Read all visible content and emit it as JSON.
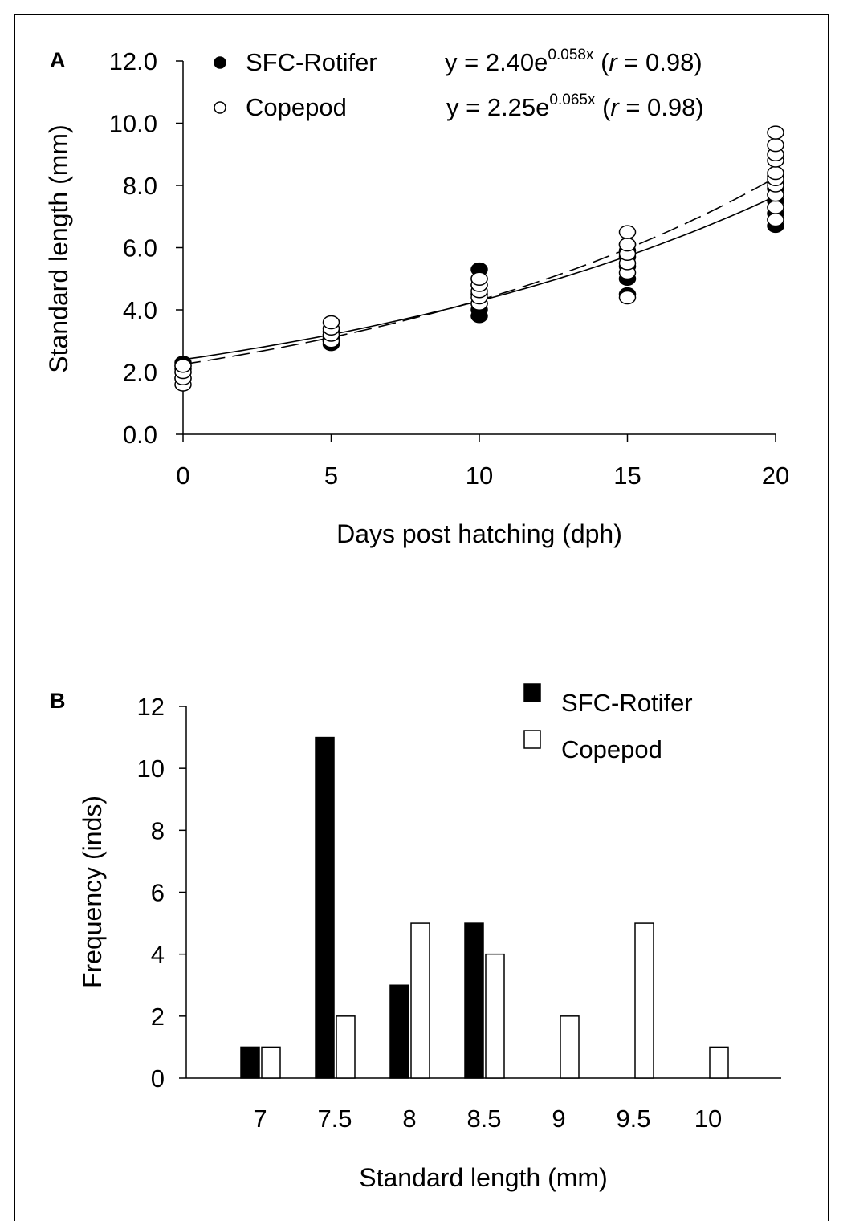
{
  "chart_data": [
    {
      "panel": "A",
      "type": "scatter",
      "xlabel": "Days post hatching (dph)",
      "ylabel": "Standard length (mm)",
      "xlim": [
        0,
        20
      ],
      "ylim": [
        0,
        12
      ],
      "xticks": [
        "0",
        "5",
        "10",
        "15",
        "20"
      ],
      "yticks": [
        "0.0",
        "2.0",
        "4.0",
        "6.0",
        "8.0",
        "10.0",
        "12.0"
      ],
      "legend_placement": "top-left",
      "grid": false,
      "series": [
        {
          "name": "SFC-Rotifer",
          "marker": "filled-circle",
          "line": "solid",
          "equation": {
            "prefix": "y = 2.40e",
            "exponent": "0.058x",
            "r_open": " (",
            "r_var": "r",
            "r_value": " = 0.98)"
          },
          "fit": {
            "a": 2.4,
            "b": 0.058
          },
          "points": [
            [
              0,
              1.8
            ],
            [
              0,
              2.0
            ],
            [
              0,
              2.1
            ],
            [
              0,
              2.2
            ],
            [
              0,
              2.3
            ],
            [
              5,
              2.9
            ],
            [
              5,
              3.0
            ],
            [
              5,
              3.1
            ],
            [
              5,
              3.2
            ],
            [
              5,
              3.3
            ],
            [
              10,
              3.8
            ],
            [
              10,
              4.0
            ],
            [
              10,
              4.2
            ],
            [
              10,
              4.5
            ],
            [
              10,
              4.8
            ],
            [
              10,
              5.0
            ],
            [
              10,
              5.3
            ],
            [
              15,
              4.5
            ],
            [
              15,
              5.0
            ],
            [
              15,
              5.4
            ],
            [
              15,
              5.7
            ],
            [
              15,
              5.9
            ],
            [
              15,
              6.1
            ],
            [
              20,
              6.7
            ],
            [
              20,
              6.9
            ],
            [
              20,
              7.1
            ],
            [
              20,
              7.3
            ],
            [
              20,
              7.5
            ],
            [
              20,
              7.7
            ],
            [
              20,
              7.9
            ],
            [
              20,
              8.1
            ],
            [
              20,
              8.3
            ]
          ]
        },
        {
          "name": "Copepod",
          "marker": "open-circle",
          "line": "dashed",
          "equation": {
            "prefix": "y = 2.25e",
            "exponent": "0.065x",
            "r_open": " (",
            "r_var": "r",
            "r_value": " = 0.98)"
          },
          "fit": {
            "a": 2.25,
            "b": 0.065
          },
          "points": [
            [
              0,
              1.6
            ],
            [
              0,
              1.8
            ],
            [
              0,
              2.0
            ],
            [
              0,
              2.2
            ],
            [
              5,
              3.0
            ],
            [
              5,
              3.2
            ],
            [
              5,
              3.4
            ],
            [
              5,
              3.6
            ],
            [
              10,
              4.2
            ],
            [
              10,
              4.4
            ],
            [
              10,
              4.6
            ],
            [
              10,
              4.8
            ],
            [
              10,
              5.0
            ],
            [
              15,
              4.4
            ],
            [
              15,
              5.2
            ],
            [
              15,
              5.5
            ],
            [
              15,
              5.8
            ],
            [
              15,
              6.1
            ],
            [
              15,
              6.5
            ],
            [
              20,
              6.9
            ],
            [
              20,
              7.3
            ],
            [
              20,
              7.7
            ],
            [
              20,
              8.0
            ],
            [
              20,
              8.2
            ],
            [
              20,
              8.4
            ],
            [
              20,
              8.8
            ],
            [
              20,
              9.0
            ],
            [
              20,
              9.3
            ],
            [
              20,
              9.7
            ]
          ]
        }
      ]
    },
    {
      "panel": "B",
      "type": "bar",
      "xlabel": "Standard length (mm)",
      "ylabel": "Frequency (inds)",
      "categories": [
        "7",
        "7.5",
        "8",
        "8.5",
        "9",
        "9.5",
        "10"
      ],
      "ylim": [
        0,
        12
      ],
      "yticks": [
        "0",
        "2",
        "4",
        "6",
        "8",
        "10",
        "12"
      ],
      "legend_placement": "top-right",
      "grid": false,
      "series": [
        {
          "name": "SFC-Rotifer",
          "color": "#000000",
          "values": [
            1,
            11,
            3,
            5,
            0,
            0,
            0
          ]
        },
        {
          "name": "Copepod",
          "color": "#ffffff",
          "values": [
            1,
            2,
            5,
            4,
            2,
            5,
            1
          ]
        }
      ]
    }
  ]
}
